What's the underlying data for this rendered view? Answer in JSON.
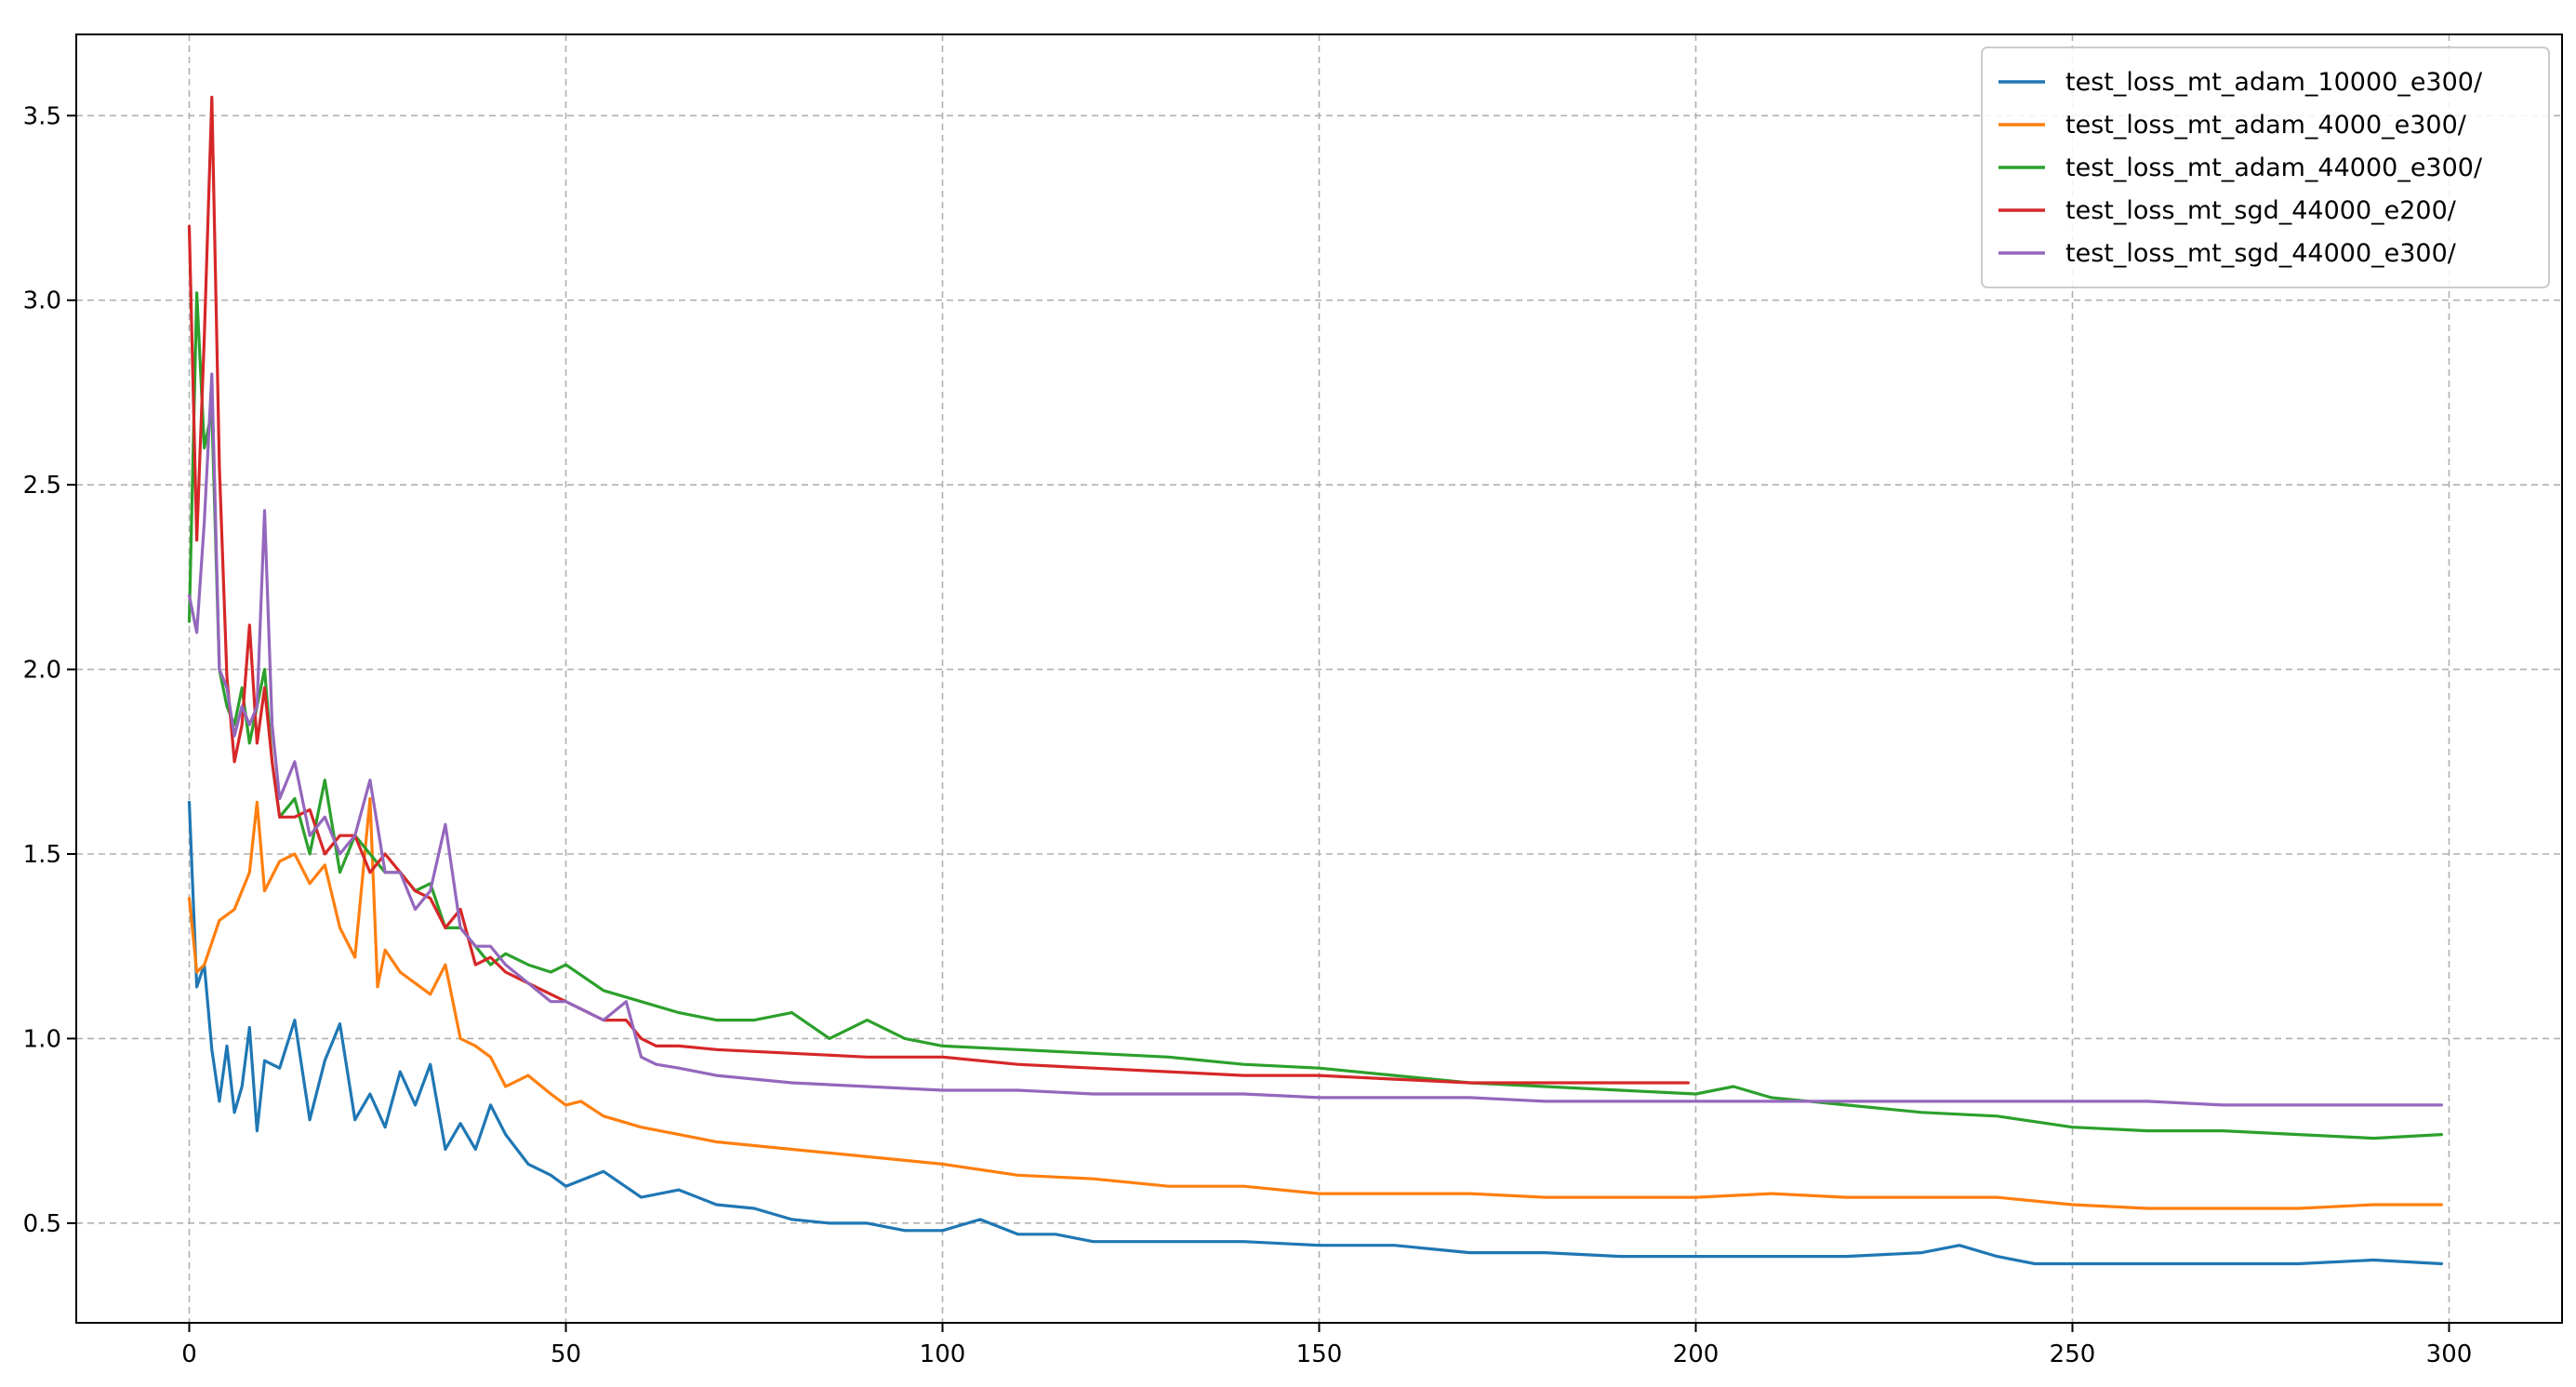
{
  "chart_data": {
    "type": "line",
    "title": "",
    "xlabel": "",
    "ylabel": "",
    "xlim": [
      -15,
      315
    ],
    "ylim": [
      0.23,
      3.72
    ],
    "grid": true,
    "legend_position": "top-right",
    "x_ticks": [
      0,
      50,
      100,
      150,
      200,
      250,
      300
    ],
    "y_ticks": [
      0.5,
      1.0,
      1.5,
      2.0,
      2.5,
      3.0,
      3.5
    ],
    "x_tick_labels": [
      "0",
      "50",
      "100",
      "150",
      "200",
      "250",
      "300"
    ],
    "y_tick_labels": [
      "0.5",
      "1.0",
      "1.5",
      "2.0",
      "2.5",
      "3.0",
      "3.5"
    ],
    "series": [
      {
        "name": "test_loss_mt_adam_10000_e300/",
        "color": "#1f77b4",
        "x": [
          0,
          1,
          2,
          3,
          4,
          5,
          6,
          7,
          8,
          9,
          10,
          12,
          14,
          16,
          18,
          20,
          22,
          24,
          26,
          28,
          30,
          32,
          34,
          36,
          38,
          40,
          42,
          45,
          48,
          50,
          55,
          60,
          65,
          70,
          75,
          80,
          85,
          90,
          95,
          100,
          105,
          110,
          115,
          120,
          130,
          140,
          150,
          160,
          170,
          180,
          190,
          200,
          210,
          220,
          230,
          235,
          240,
          245,
          250,
          260,
          270,
          280,
          290,
          299
        ],
        "y": [
          1.64,
          1.14,
          1.2,
          0.97,
          0.83,
          0.98,
          0.8,
          0.87,
          1.03,
          0.75,
          0.94,
          0.92,
          1.05,
          0.78,
          0.94,
          1.04,
          0.78,
          0.85,
          0.76,
          0.91,
          0.82,
          0.93,
          0.7,
          0.77,
          0.7,
          0.82,
          0.74,
          0.66,
          0.63,
          0.6,
          0.64,
          0.57,
          0.59,
          0.55,
          0.54,
          0.51,
          0.5,
          0.5,
          0.48,
          0.48,
          0.51,
          0.47,
          0.47,
          0.45,
          0.45,
          0.45,
          0.44,
          0.44,
          0.42,
          0.42,
          0.41,
          0.41,
          0.41,
          0.41,
          0.42,
          0.44,
          0.41,
          0.39,
          0.39,
          0.39,
          0.39,
          0.39,
          0.4,
          0.39
        ]
      },
      {
        "name": "test_loss_mt_adam_4000_e300/",
        "color": "#ff7f0e",
        "x": [
          0,
          1,
          2,
          4,
          6,
          8,
          9,
          10,
          12,
          14,
          16,
          18,
          20,
          22,
          24,
          25,
          26,
          28,
          30,
          32,
          34,
          36,
          38,
          40,
          42,
          45,
          48,
          50,
          52,
          55,
          60,
          65,
          70,
          75,
          80,
          90,
          100,
          110,
          120,
          130,
          140,
          150,
          160,
          170,
          180,
          190,
          200,
          210,
          220,
          230,
          240,
          250,
          260,
          270,
          280,
          290,
          299
        ],
        "y": [
          1.38,
          1.18,
          1.2,
          1.32,
          1.35,
          1.45,
          1.64,
          1.4,
          1.48,
          1.5,
          1.42,
          1.47,
          1.3,
          1.22,
          1.65,
          1.14,
          1.24,
          1.18,
          1.15,
          1.12,
          1.2,
          1.0,
          0.98,
          0.95,
          0.87,
          0.9,
          0.85,
          0.82,
          0.83,
          0.79,
          0.76,
          0.74,
          0.72,
          0.71,
          0.7,
          0.68,
          0.66,
          0.63,
          0.62,
          0.6,
          0.6,
          0.58,
          0.58,
          0.58,
          0.57,
          0.57,
          0.57,
          0.58,
          0.57,
          0.57,
          0.57,
          0.55,
          0.54,
          0.54,
          0.54,
          0.55,
          0.55
        ]
      },
      {
        "name": "test_loss_mt_adam_44000_e300/",
        "color": "#2ca02c",
        "x": [
          0,
          1,
          2,
          3,
          4,
          5,
          6,
          7,
          8,
          9,
          10,
          11,
          12,
          14,
          16,
          18,
          20,
          22,
          24,
          26,
          28,
          30,
          32,
          34,
          36,
          38,
          40,
          42,
          45,
          48,
          50,
          55,
          60,
          65,
          70,
          75,
          80,
          85,
          90,
          95,
          100,
          110,
          120,
          130,
          140,
          150,
          160,
          170,
          180,
          190,
          200,
          205,
          210,
          220,
          230,
          240,
          250,
          260,
          270,
          280,
          290,
          299
        ],
        "y": [
          2.13,
          3.02,
          2.6,
          2.7,
          2.0,
          1.9,
          1.85,
          1.95,
          1.8,
          1.9,
          2.0,
          1.75,
          1.6,
          1.65,
          1.5,
          1.7,
          1.45,
          1.55,
          1.5,
          1.45,
          1.45,
          1.4,
          1.42,
          1.3,
          1.3,
          1.25,
          1.2,
          1.23,
          1.2,
          1.18,
          1.2,
          1.13,
          1.1,
          1.07,
          1.05,
          1.05,
          1.07,
          1.0,
          1.05,
          1.0,
          0.98,
          0.97,
          0.96,
          0.95,
          0.93,
          0.92,
          0.9,
          0.88,
          0.87,
          0.86,
          0.85,
          0.87,
          0.84,
          0.82,
          0.8,
          0.79,
          0.76,
          0.75,
          0.75,
          0.74,
          0.73,
          0.74
        ]
      },
      {
        "name": "test_loss_mt_sgd_44000_e200/",
        "color": "#d62728",
        "x": [
          0,
          1,
          2,
          3,
          4,
          5,
          6,
          7,
          8,
          9,
          10,
          11,
          12,
          14,
          16,
          18,
          20,
          22,
          24,
          26,
          28,
          30,
          32,
          34,
          36,
          38,
          40,
          42,
          45,
          48,
          50,
          55,
          58,
          60,
          62,
          65,
          70,
          80,
          90,
          100,
          110,
          120,
          130,
          140,
          150,
          160,
          170,
          180,
          190,
          199
        ],
        "y": [
          3.2,
          2.35,
          2.9,
          3.55,
          2.55,
          1.98,
          1.75,
          1.85,
          2.12,
          1.8,
          1.95,
          1.75,
          1.6,
          1.6,
          1.62,
          1.5,
          1.55,
          1.55,
          1.45,
          1.5,
          1.45,
          1.4,
          1.38,
          1.3,
          1.35,
          1.2,
          1.22,
          1.18,
          1.15,
          1.12,
          1.1,
          1.05,
          1.05,
          1.0,
          0.98,
          0.98,
          0.97,
          0.96,
          0.95,
          0.95,
          0.93,
          0.92,
          0.91,
          0.9,
          0.9,
          0.89,
          0.88,
          0.88,
          0.88,
          0.88
        ]
      },
      {
        "name": "test_loss_mt_sgd_44000_e300/",
        "color": "#9467bd",
        "x": [
          0,
          1,
          2,
          3,
          4,
          5,
          6,
          7,
          8,
          9,
          10,
          11,
          12,
          14,
          16,
          18,
          20,
          22,
          24,
          26,
          28,
          30,
          32,
          34,
          36,
          38,
          40,
          42,
          45,
          48,
          50,
          55,
          58,
          60,
          62,
          65,
          70,
          80,
          90,
          100,
          110,
          120,
          130,
          140,
          150,
          160,
          170,
          180,
          190,
          200,
          210,
          220,
          230,
          240,
          250,
          260,
          270,
          280,
          290,
          299
        ],
        "y": [
          2.2,
          2.1,
          2.4,
          2.8,
          2.0,
          1.95,
          1.82,
          1.9,
          1.85,
          1.9,
          2.43,
          1.85,
          1.65,
          1.75,
          1.55,
          1.6,
          1.5,
          1.55,
          1.7,
          1.45,
          1.45,
          1.35,
          1.4,
          1.58,
          1.3,
          1.25,
          1.25,
          1.2,
          1.15,
          1.1,
          1.1,
          1.05,
          1.1,
          0.95,
          0.93,
          0.92,
          0.9,
          0.88,
          0.87,
          0.86,
          0.86,
          0.85,
          0.85,
          0.85,
          0.84,
          0.84,
          0.84,
          0.83,
          0.83,
          0.83,
          0.83,
          0.83,
          0.83,
          0.83,
          0.83,
          0.83,
          0.82,
          0.82,
          0.82,
          0.82
        ]
      }
    ]
  }
}
